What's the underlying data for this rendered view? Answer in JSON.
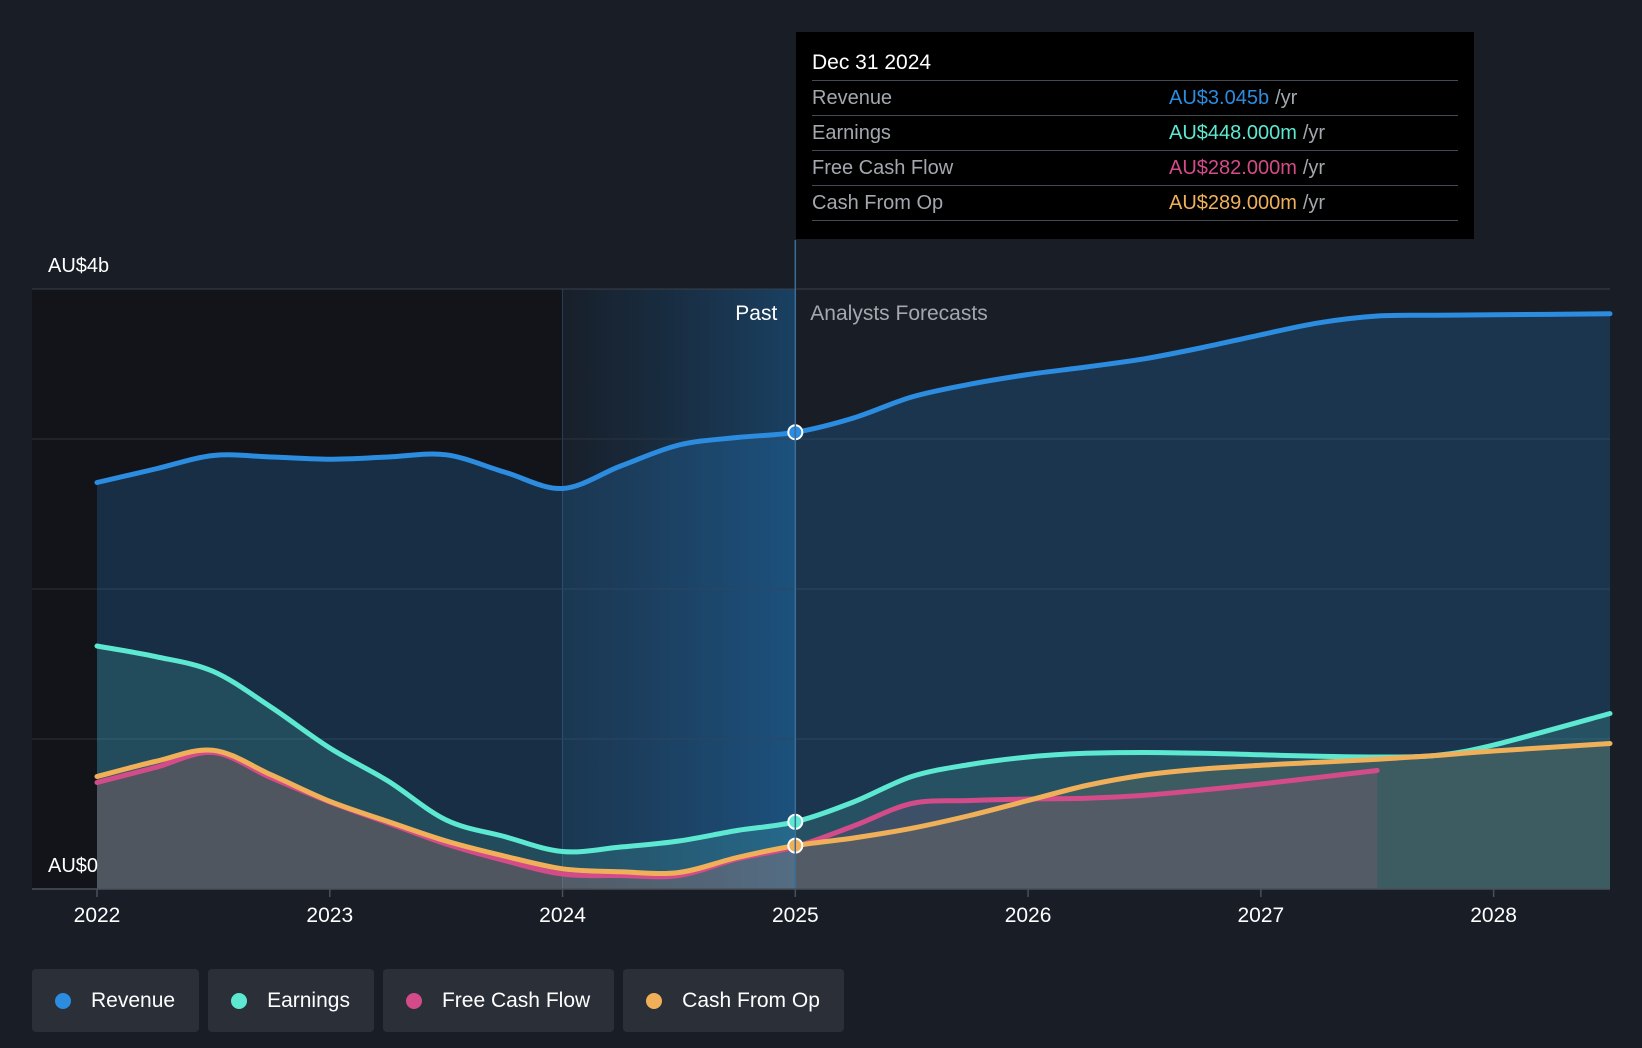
{
  "chart_data": {
    "type": "area",
    "y_axis": {
      "top_label": "AU$4b",
      "bottom_label": "AU$0",
      "ylim": [
        0,
        4000
      ],
      "unit": "AU$m",
      "gridlines": 5
    },
    "x_axis": {
      "tick_labels": [
        "2022",
        "2023",
        "2024",
        "2025",
        "2026",
        "2027",
        "2028"
      ],
      "range": [
        2022.0,
        2028.5
      ]
    },
    "divider": {
      "x": 2025.0,
      "past_label": "Past",
      "forecast_label": "Analysts Forecasts"
    },
    "series": [
      {
        "name": "Revenue",
        "color": "#2b8ce0",
        "points": [
          [
            2022.0,
            2710
          ],
          [
            2022.25,
            2800
          ],
          [
            2022.5,
            2890
          ],
          [
            2022.75,
            2880
          ],
          [
            2023.0,
            2865
          ],
          [
            2023.25,
            2880
          ],
          [
            2023.5,
            2895
          ],
          [
            2023.75,
            2780
          ],
          [
            2024.0,
            2670
          ],
          [
            2024.25,
            2820
          ],
          [
            2024.5,
            2960
          ],
          [
            2024.75,
            3010
          ],
          [
            2025.0,
            3045
          ],
          [
            2025.25,
            3140
          ],
          [
            2025.5,
            3280
          ],
          [
            2025.75,
            3365
          ],
          [
            2026.0,
            3430
          ],
          [
            2026.25,
            3480
          ],
          [
            2026.5,
            3535
          ],
          [
            2026.75,
            3610
          ],
          [
            2027.0,
            3695
          ],
          [
            2027.25,
            3775
          ],
          [
            2027.5,
            3820
          ],
          [
            2027.75,
            3825
          ],
          [
            2028.0,
            3828
          ],
          [
            2028.5,
            3835
          ]
        ]
      },
      {
        "name": "Earnings",
        "color": "#5de8d2",
        "points": [
          [
            2022.0,
            1620
          ],
          [
            2022.25,
            1550
          ],
          [
            2022.5,
            1450
          ],
          [
            2022.75,
            1210
          ],
          [
            2023.0,
            940
          ],
          [
            2023.25,
            720
          ],
          [
            2023.5,
            460
          ],
          [
            2023.75,
            350
          ],
          [
            2024.0,
            250
          ],
          [
            2024.25,
            280
          ],
          [
            2024.5,
            320
          ],
          [
            2024.75,
            390
          ],
          [
            2025.0,
            448
          ],
          [
            2025.25,
            580
          ],
          [
            2025.5,
            750
          ],
          [
            2025.75,
            830
          ],
          [
            2026.0,
            880
          ],
          [
            2026.25,
            905
          ],
          [
            2026.5,
            910
          ],
          [
            2026.75,
            905
          ],
          [
            2027.0,
            895
          ],
          [
            2027.25,
            885
          ],
          [
            2027.5,
            880
          ],
          [
            2027.75,
            890
          ],
          [
            2028.0,
            960
          ],
          [
            2028.5,
            1170
          ]
        ]
      },
      {
        "name": "Free Cash Flow",
        "color": "#d44b8a",
        "points": [
          [
            2022.0,
            710
          ],
          [
            2022.25,
            810
          ],
          [
            2022.5,
            910
          ],
          [
            2022.75,
            740
          ],
          [
            2023.0,
            580
          ],
          [
            2023.25,
            440
          ],
          [
            2023.5,
            300
          ],
          [
            2023.75,
            190
          ],
          [
            2024.0,
            100
          ],
          [
            2024.25,
            90
          ],
          [
            2024.5,
            90
          ],
          [
            2024.75,
            200
          ],
          [
            2025.0,
            282
          ],
          [
            2025.25,
            420
          ],
          [
            2025.5,
            570
          ],
          [
            2025.75,
            590
          ],
          [
            2026.0,
            600
          ],
          [
            2026.25,
            605
          ],
          [
            2026.5,
            625
          ],
          [
            2026.75,
            660
          ],
          [
            2027.0,
            700
          ],
          [
            2027.25,
            745
          ],
          [
            2027.5,
            790
          ]
        ]
      },
      {
        "name": "Cash From Op",
        "color": "#f0b05a",
        "points": [
          [
            2022.0,
            750
          ],
          [
            2022.25,
            850
          ],
          [
            2022.5,
            925
          ],
          [
            2022.75,
            760
          ],
          [
            2023.0,
            585
          ],
          [
            2023.25,
            450
          ],
          [
            2023.5,
            320
          ],
          [
            2023.75,
            220
          ],
          [
            2024.0,
            135
          ],
          [
            2024.25,
            115
          ],
          [
            2024.5,
            110
          ],
          [
            2024.75,
            210
          ],
          [
            2025.0,
            289
          ],
          [
            2025.25,
            340
          ],
          [
            2025.5,
            405
          ],
          [
            2025.75,
            490
          ],
          [
            2026.0,
            590
          ],
          [
            2026.25,
            690
          ],
          [
            2026.5,
            760
          ],
          [
            2026.75,
            800
          ],
          [
            2027.0,
            825
          ],
          [
            2027.25,
            845
          ],
          [
            2027.5,
            865
          ],
          [
            2027.75,
            890
          ],
          [
            2028.0,
            920
          ],
          [
            2028.5,
            970
          ]
        ]
      }
    ],
    "tooltip": {
      "date": "Dec 31 2024",
      "rows": [
        {
          "label": "Revenue",
          "value": "AU$3.045b",
          "unit": "/yr",
          "color": "#2b8ce0"
        },
        {
          "label": "Earnings",
          "value": "AU$448.000m",
          "unit": "/yr",
          "color": "#5de8d2"
        },
        {
          "label": "Free Cash Flow",
          "value": "AU$282.000m",
          "unit": "/yr",
          "color": "#d44b8a"
        },
        {
          "label": "Cash From Op",
          "value": "AU$289.000m",
          "unit": "/yr",
          "color": "#f0b05a"
        }
      ]
    },
    "legend": [
      {
        "name": "Revenue",
        "color": "#2b8ce0"
      },
      {
        "name": "Earnings",
        "color": "#5de8d2"
      },
      {
        "name": "Free Cash Flow",
        "color": "#d44b8a"
      },
      {
        "name": "Cash From Op",
        "color": "#f0b05a"
      }
    ]
  }
}
